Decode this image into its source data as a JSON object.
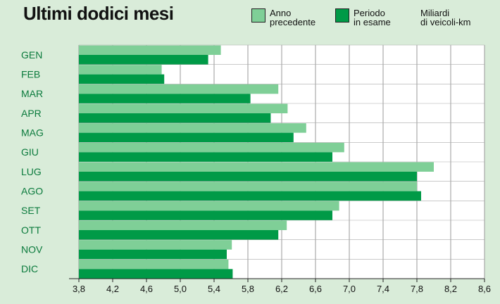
{
  "header": {
    "title": "Ultimi dodici mesi",
    "legend_prev": "Anno\nprecedente",
    "legend_curr": "Periodo\nin esame",
    "unit": "Miliardi\ndi veicoli-km"
  },
  "colors": {
    "background": "#d9ecd9",
    "previous": "#7fcf97",
    "current": "#009a47",
    "month_label": "#0a7a3c"
  },
  "chart_data": {
    "type": "bar",
    "orientation": "horizontal",
    "title": "Ultimi dodici mesi",
    "xlabel": "Miliardi di veicoli-km",
    "categories": [
      "GEN",
      "FEB",
      "MAR",
      "APR",
      "MAG",
      "GIU",
      "LUG",
      "AGO",
      "SET",
      "OTT",
      "NOV",
      "DIC"
    ],
    "series": [
      {
        "name": "Anno precedente",
        "values": [
          5.48,
          4.78,
          6.16,
          6.27,
          6.49,
          6.94,
          8.0,
          7.8,
          6.88,
          6.26,
          5.61,
          5.57
        ]
      },
      {
        "name": "Periodo in esame",
        "values": [
          5.33,
          4.81,
          5.83,
          6.07,
          6.34,
          6.8,
          7.8,
          7.85,
          6.8,
          6.16,
          5.55,
          5.62
        ]
      }
    ],
    "xlim": [
      3.8,
      8.6
    ],
    "xticks": [
      "3,8",
      "4,2",
      "4,6",
      "5,0",
      "5,4",
      "5,8",
      "6,2",
      "6,6",
      "7,0",
      "7,4",
      "7,8",
      "8,2",
      "8,6"
    ],
    "grid": true,
    "legend": "top-right"
  }
}
